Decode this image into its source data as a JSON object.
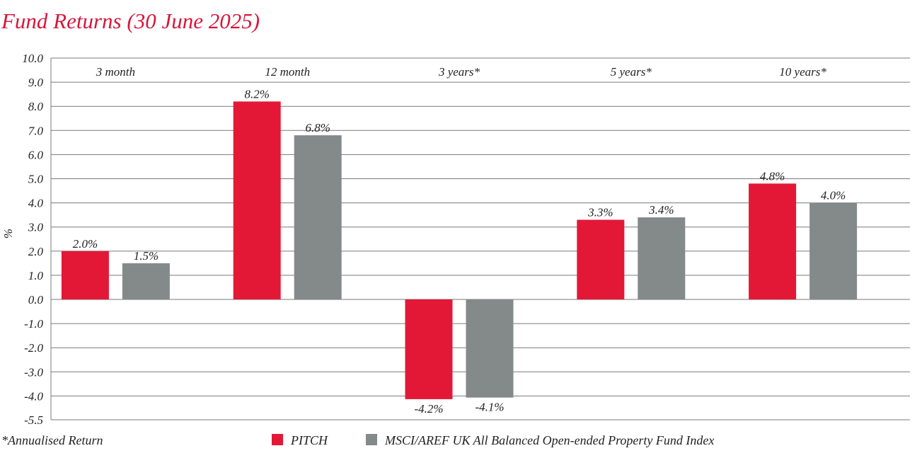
{
  "colors": {
    "title": "#d7163a",
    "pitch": "#e31837",
    "index": "#848a89",
    "grid": "#7a7a7a",
    "text": "#222222"
  },
  "chart_data": {
    "type": "bar",
    "title": "Fund Returns (30 June 2025)",
    "xlabel": "",
    "ylabel": "%",
    "ylim": [
      -5.5,
      10.0
    ],
    "yticks": [
      "10.0",
      "9.0",
      "8.0",
      "7.0",
      "6.0",
      "5.0",
      "4.0",
      "3.0",
      "2.0",
      "1.0",
      "0.0",
      "-1.0",
      "-2.0",
      "-3.0",
      "-4.0",
      "-5.5"
    ],
    "ytick_values": [
      10,
      9,
      8,
      7,
      6,
      5,
      4,
      3,
      2,
      1,
      0,
      -1,
      -2,
      -3,
      -4,
      -5.5
    ],
    "grid": true,
    "legend_position": "bottom",
    "categories": [
      "3 month",
      "12 month",
      "3 years*",
      "5 years*",
      "10 years*"
    ],
    "series": [
      {
        "name": "PITCH",
        "color_key": "pitch",
        "values": [
          2.0,
          8.2,
          -4.2,
          3.3,
          4.8
        ],
        "labels": [
          "2.0%",
          "8.2%",
          "-4.2%",
          "3.3%",
          "4.8%"
        ]
      },
      {
        "name": "MSCI/AREF UK All Balanced Open-ended Property Fund Index",
        "color_key": "index",
        "values": [
          1.5,
          6.8,
          -4.1,
          3.4,
          4.0
        ],
        "labels": [
          "1.5%",
          "6.8%",
          "-4.1%",
          "3.4%",
          "4.0%"
        ]
      }
    ],
    "footnote": "*Annualised Return"
  }
}
